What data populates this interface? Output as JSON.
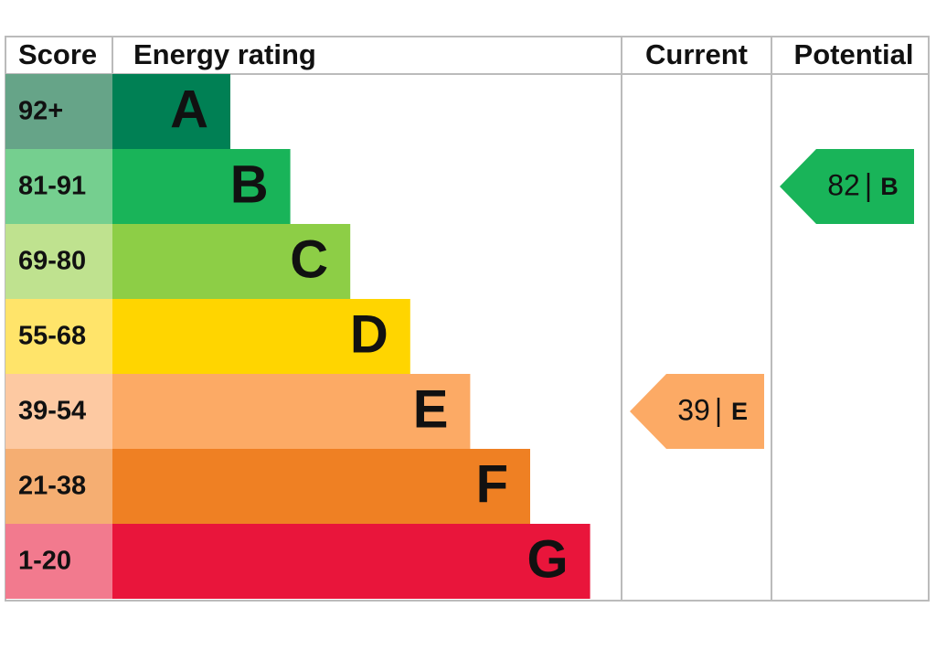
{
  "chart_data": {
    "type": "epc",
    "headers": {
      "score": "Score",
      "rating": "Energy rating",
      "current": "Current",
      "potential": "Potential"
    },
    "bands": [
      {
        "range": "92+",
        "letter": "A",
        "color": "#008054",
        "score_color": "#66a488"
      },
      {
        "range": "81-91",
        "letter": "B",
        "color": "#19b459",
        "score_color": "#75cf8f"
      },
      {
        "range": "69-80",
        "letter": "C",
        "color": "#8dce46",
        "score_color": "#bfe28f"
      },
      {
        "range": "55-68",
        "letter": "D",
        "color": "#ffd500",
        "score_color": "#ffe46a"
      },
      {
        "range": "39-54",
        "letter": "E",
        "color": "#fcaa65",
        "score_color": "#fdc9a2"
      },
      {
        "range": "21-38",
        "letter": "F",
        "color": "#ef8023",
        "score_color": "#f5ae72"
      },
      {
        "range": "1-20",
        "letter": "G",
        "color": "#e9153b",
        "score_color": "#f27a8e"
      }
    ],
    "current": {
      "score": 39,
      "rating": "E"
    },
    "potential": {
      "score": 82,
      "rating": "B"
    }
  }
}
